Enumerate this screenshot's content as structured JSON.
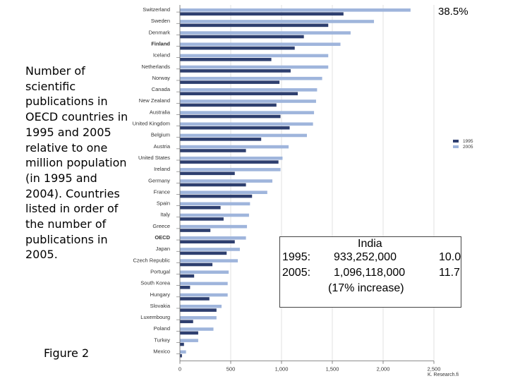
{
  "caption": "Number of scientific publications in OECD countries in 1995 and 2005 relative to one million population (in 1995 and 2004). Countries listed in order of the number of publications in 2005.",
  "figure_label": "Figure 2",
  "top_annotation": "38.5%",
  "india_box": {
    "title": "India",
    "row_1995": {
      "year": "1995:",
      "population": "933,252,000",
      "value": "10.0"
    },
    "row_2005": {
      "year": "2005:",
      "population": "1,096,118,000",
      "value": "11.7"
    },
    "increase": "(17% increase)"
  },
  "credit": "K. Research.fi",
  "colors": {
    "series_1995": "#2e3f6f",
    "series_2005": "#9fb5dc",
    "axis": "#666666",
    "grid": "#cccccc"
  },
  "chart_data": {
    "type": "bar",
    "orientation": "horizontal",
    "categories": [
      "Switzerland",
      "Sweden",
      "Denmark",
      "Finland",
      "Iceland",
      "Netherlands",
      "Norway",
      "Canada",
      "New Zealand",
      "Australia",
      "United Kingdom",
      "Belgium",
      "Austria",
      "United States",
      "Ireland",
      "Germany",
      "France",
      "Spain",
      "Italy",
      "Greece",
      "OECD",
      "Japan",
      "Czech Republic",
      "Portugal",
      "South Korea",
      "Hungary",
      "Slovakia",
      "Luxembourg",
      "Poland",
      "Turkey",
      "Mexico"
    ],
    "series": [
      {
        "name": "1995",
        "values": [
          1610,
          1460,
          1220,
          1130,
          900,
          1090,
          980,
          1160,
          950,
          990,
          1080,
          800,
          650,
          970,
          540,
          650,
          710,
          400,
          430,
          300,
          540,
          460,
          320,
          140,
          100,
          290,
          360,
          130,
          180,
          40,
          20
        ]
      },
      {
        "name": "2005",
        "values": [
          2270,
          1910,
          1680,
          1580,
          1460,
          1460,
          1400,
          1350,
          1340,
          1320,
          1310,
          1250,
          1070,
          1010,
          990,
          910,
          860,
          690,
          680,
          660,
          650,
          590,
          570,
          480,
          470,
          470,
          410,
          360,
          330,
          180,
          60
        ]
      }
    ],
    "xlim": [
      0,
      2500
    ],
    "xticks": [
      "0",
      "500",
      "1,000",
      "1,500",
      "2,000",
      "2,500"
    ],
    "legend_position": "right",
    "grid": true
  }
}
